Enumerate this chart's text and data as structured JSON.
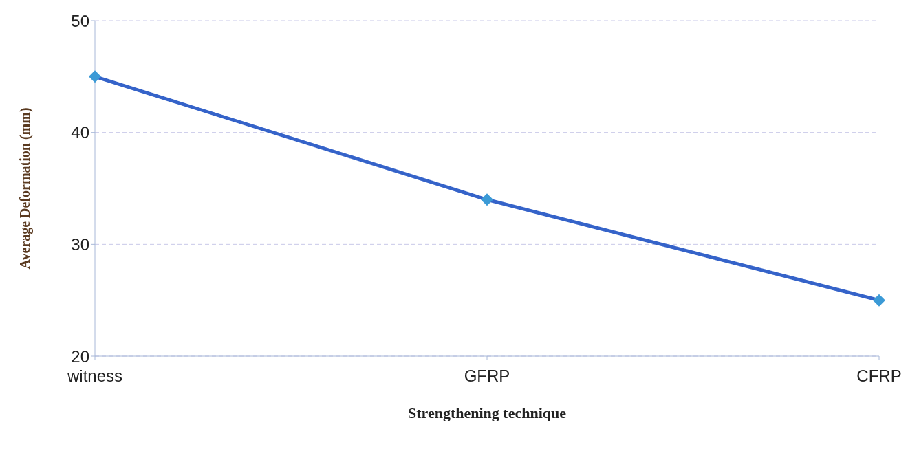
{
  "chart_data": {
    "type": "line",
    "xlabel": "Strengthening technique",
    "ylabel": "Average Deformation (mm)",
    "categories": [
      "witness",
      "GFRP",
      "CFRP"
    ],
    "series": [
      {
        "color": "#3563c9",
        "values": [
          45,
          34,
          25
        ]
      }
    ],
    "ylim": [
      20,
      50
    ],
    "yticks": [
      20,
      30,
      40,
      50
    ],
    "grid": "y",
    "marker": "diamond",
    "line_style": "solid",
    "legend": false
  }
}
